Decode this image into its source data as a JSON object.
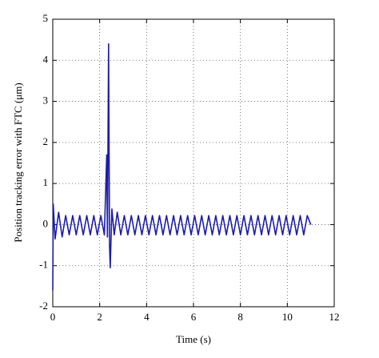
{
  "chart_data": {
    "type": "line",
    "x_label": "Time (s)",
    "y_label": "Position tracking error with FTC (μm)",
    "xlim": [
      0,
      12
    ],
    "xticks": [
      0,
      2,
      4,
      6,
      8,
      10,
      12
    ],
    "ylim": [
      -2,
      5
    ],
    "yticks": [
      -2,
      -1,
      0,
      1,
      2,
      3,
      4,
      5
    ],
    "grid": true,
    "series": [
      {
        "color": "#1c1caa",
        "x": [
          0,
          0.02,
          0.1,
          0.25,
          0.4,
          0.55,
          0.7,
          0.85,
          1.0,
          1.15,
          1.3,
          1.45,
          1.6,
          1.75,
          1.9,
          2.05,
          2.2,
          2.3,
          2.33,
          2.38,
          2.42,
          2.45,
          2.52,
          2.62,
          2.75,
          2.9,
          3.05,
          3.2,
          3.35,
          3.5,
          3.65,
          3.8,
          3.95,
          4.1,
          4.25,
          4.4,
          4.55,
          4.7,
          4.85,
          5.0,
          5.15,
          5.3,
          5.45,
          5.6,
          5.75,
          5.9,
          6.05,
          6.2,
          6.35,
          6.5,
          6.65,
          6.8,
          6.95,
          7.1,
          7.25,
          7.4,
          7.55,
          7.7,
          7.85,
          8.0,
          8.15,
          8.3,
          8.45,
          8.6,
          8.75,
          8.9,
          9.05,
          9.2,
          9.35,
          9.5,
          9.65,
          9.8,
          9.95,
          10.1,
          10.25,
          10.4,
          10.55,
          10.7,
          10.85,
          11.0
        ],
        "values": [
          -1.6,
          0.5,
          -0.35,
          0.3,
          -0.3,
          0.22,
          -0.25,
          0.22,
          -0.25,
          0.22,
          -0.25,
          0.22,
          -0.25,
          0.22,
          -0.25,
          0.22,
          -0.25,
          1.7,
          -0.3,
          4.4,
          -0.5,
          -1.05,
          0.38,
          -0.25,
          0.3,
          -0.25,
          0.22,
          -0.25,
          0.22,
          -0.25,
          0.22,
          -0.25,
          0.22,
          -0.25,
          0.22,
          -0.25,
          0.22,
          -0.25,
          0.22,
          -0.25,
          0.22,
          -0.25,
          0.22,
          -0.25,
          0.22,
          -0.25,
          0.22,
          -0.25,
          0.22,
          -0.25,
          0.22,
          -0.25,
          0.22,
          -0.25,
          0.22,
          -0.25,
          0.22,
          -0.25,
          0.22,
          -0.25,
          0.22,
          -0.25,
          0.22,
          -0.25,
          0.22,
          -0.25,
          0.22,
          -0.25,
          0.22,
          -0.25,
          0.22,
          -0.25,
          0.22,
          -0.25,
          0.22,
          -0.25,
          0.22,
          -0.25,
          0.22,
          0
        ]
      }
    ]
  }
}
